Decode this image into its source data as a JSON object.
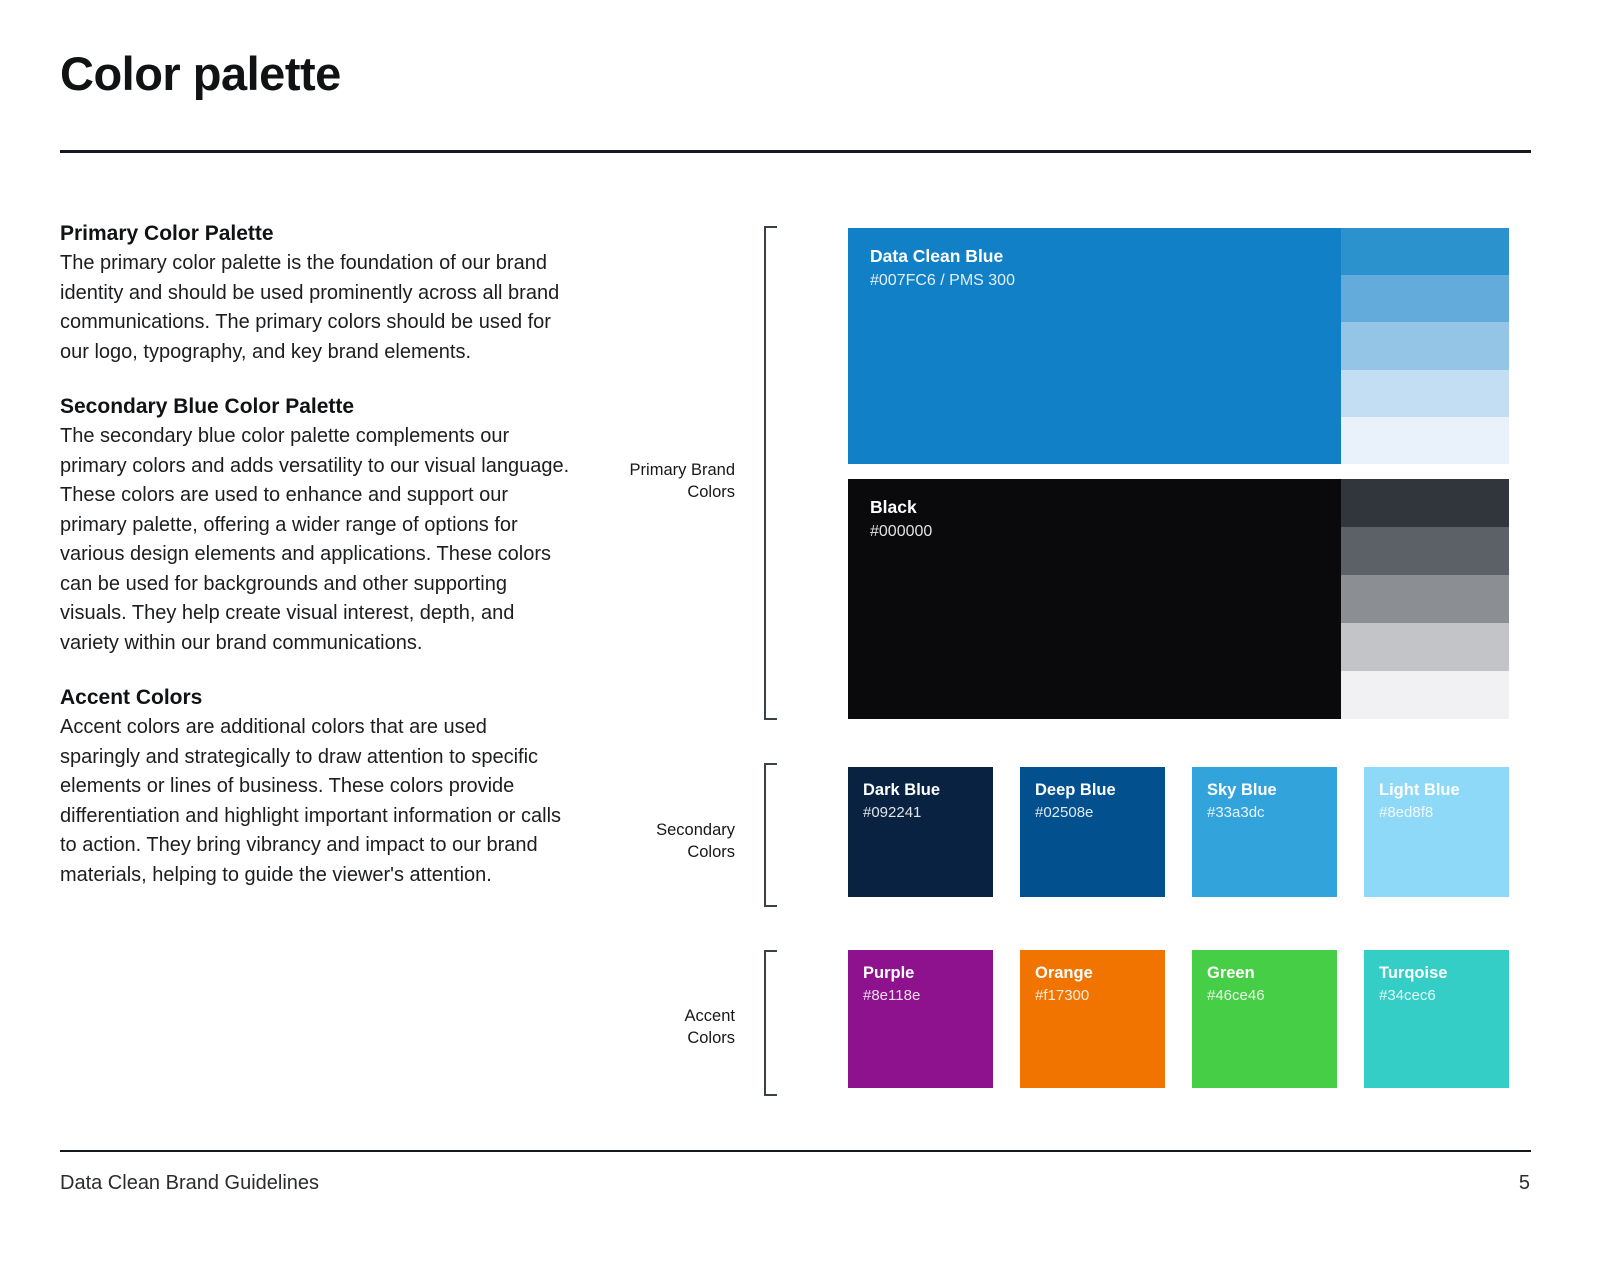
{
  "page": {
    "title": "Color palette",
    "footer": {
      "left": "Data Clean Brand Guidelines",
      "page_number": "5"
    }
  },
  "sections": [
    {
      "heading": "Primary Color Palette",
      "body": "The primary color palette is the foundation of our brand identity and should be used prominently across all brand communications. The primary colors should be used for our logo, typography, and key brand elements."
    },
    {
      "heading": "Secondary Blue Color Palette",
      "body": "The secondary blue color palette complements our primary colors and adds versatility to our visual language. These colors are used to enhance and support our primary palette, offering a wider range of options for various design elements and applications. These colors can be used for backgrounds and other supporting visuals. They help create visual interest, depth, and variety within our brand communications."
    },
    {
      "heading": "Accent Colors",
      "body": "Accent colors are additional colors that are used sparingly and strategically to draw attention to specific elements or lines of business. These colors provide differentiation and highlight important information or calls to action. They bring vibrancy and impact to our brand materials, helping to guide the viewer's attention."
    }
  ],
  "groups": [
    {
      "label": "Primary Brand Colors"
    },
    {
      "label": "Secondary Colors"
    },
    {
      "label": "Accent Colors"
    }
  ],
  "swatches": {
    "primary": [
      {
        "name": "Data Clean Blue",
        "hex_label": "#007FC6 / PMS 300",
        "color": "#1180c6",
        "tints": [
          "#2b92ce",
          "#63abda",
          "#94c5e7",
          "#c3def2",
          "#e9f2fa"
        ]
      },
      {
        "name": "Black",
        "hex_label": "#000000",
        "color": "#0a0a0c",
        "tints": [
          "#31353c",
          "#5c6067",
          "#8b8e93",
          "#c2c4c7",
          "#f1f1f4"
        ]
      }
    ],
    "secondary": [
      {
        "name": "Dark Blue",
        "hex": "#092241",
        "color": "#092241"
      },
      {
        "name": "Deep Blue",
        "hex": "#02508e",
        "color": "#02508e"
      },
      {
        "name": "Sky Blue",
        "hex": "#33a3dc",
        "color": "#33a3dc"
      },
      {
        "name": "Light Blue",
        "hex": "#8ed8f8",
        "color": "#8ed8f8"
      }
    ],
    "accent": [
      {
        "name": "Purple",
        "hex": "#8e118e",
        "color": "#8e118e"
      },
      {
        "name": "Orange",
        "hex": "#f17300",
        "color": "#f17300"
      },
      {
        "name": "Green",
        "hex": "#46ce46",
        "color": "#46ce46"
      },
      {
        "name": "Turqoise",
        "hex": "#34cec6",
        "color": "#34cec6"
      }
    ]
  }
}
